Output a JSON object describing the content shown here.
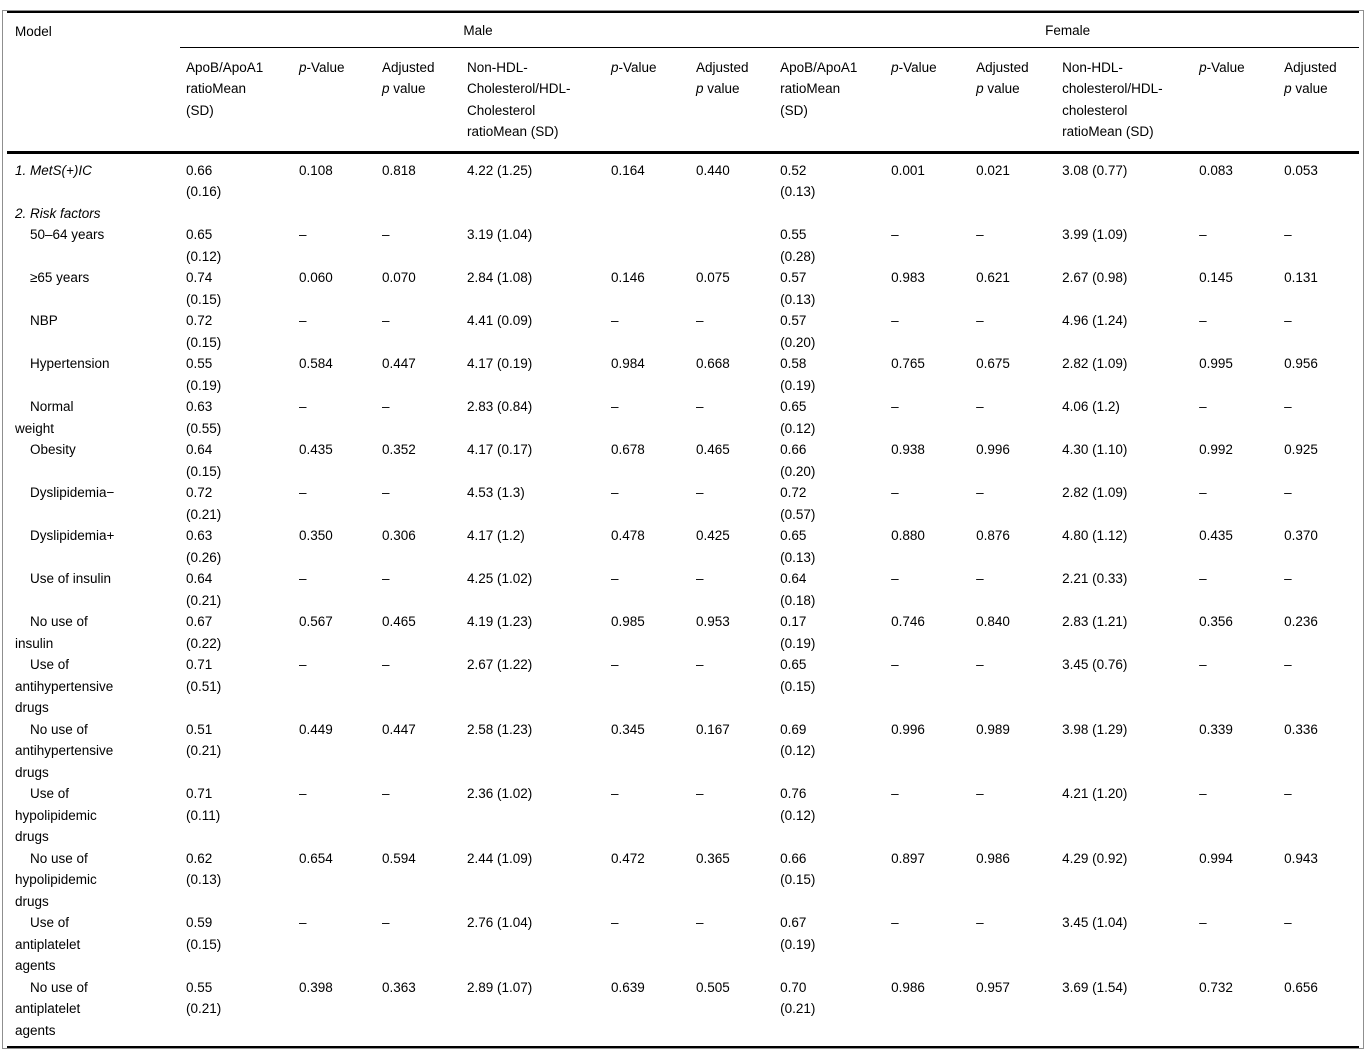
{
  "table": {
    "corner_label": "Model",
    "group_headers": [
      "Male",
      "Female"
    ],
    "sub_headers": [
      {
        "pre": "ApoB/ApoA1\nratioMean\n(SD)",
        "it": "",
        "post": ""
      },
      {
        "pre": "",
        "it": "p",
        "post": "-Value"
      },
      {
        "pre": "Adjusted\n",
        "it": "p",
        "post": " value"
      },
      {
        "pre": "Non-HDL-\nCholesterol/HDL-\nCholesterol\nratioMean (SD)",
        "it": "",
        "post": ""
      },
      {
        "pre": "",
        "it": "p",
        "post": "-Value"
      },
      {
        "pre": "Adjusted\n",
        "it": "p",
        "post": " value"
      },
      {
        "pre": "ApoB/ApoA1\nratioMean\n(SD)",
        "it": "",
        "post": ""
      },
      {
        "pre": "",
        "it": "p",
        "post": "-Value"
      },
      {
        "pre": "Adjusted\n",
        "it": "p",
        "post": " value"
      },
      {
        "pre": "Non-HDL-\ncholesterol/HDL-\ncholesterol\nratioMean (SD)",
        "it": "",
        "post": ""
      },
      {
        "pre": "",
        "it": "p",
        "post": "-Value"
      },
      {
        "pre": "Adjusted\n",
        "it": "p",
        "post": " value"
      }
    ],
    "rows": [
      {
        "label": "1. MetS(+)IC",
        "italic": true,
        "cells": [
          "0.66\n(0.16)",
          "0.108",
          "0.818",
          "4.22 (1.25)",
          "0.164",
          "0.440",
          "0.52\n(0.13)",
          "0.001",
          "0.021",
          "3.08 (0.77)",
          "0.083",
          "0.053"
        ]
      },
      {
        "label": "2. Risk factors",
        "italic": true,
        "cells": [
          "",
          "",
          "",
          "",
          "",
          "",
          "",
          "",
          "",
          "",
          "",
          ""
        ]
      },
      {
        "label": "50–64 years",
        "italic": false,
        "cells": [
          "0.65\n(0.12)",
          "–",
          "–",
          "3.19 (1.04)",
          "",
          "",
          "0.55\n(0.28)",
          "–",
          "–",
          "3.99 (1.09)",
          "–",
          "–"
        ]
      },
      {
        "label": "≥65 years",
        "italic": false,
        "cells": [
          "0.74\n(0.15)",
          "0.060",
          "0.070",
          "2.84 (1.08)",
          "0.146",
          "0.075",
          "0.57\n(0.13)",
          "0.983",
          "0.621",
          "2.67 (0.98)",
          "0.145",
          "0.131"
        ]
      },
      {
        "label": "NBP",
        "italic": false,
        "cells": [
          "0.72\n(0.15)",
          "–",
          "–",
          "4.41 (0.09)",
          "–",
          "–",
          "0.57\n(0.20)",
          "–",
          "–",
          "4.96 (1.24)",
          "–",
          "–"
        ]
      },
      {
        "label": "Hypertension",
        "italic": false,
        "cells": [
          "0.55\n(0.19)",
          "0.584",
          "0.447",
          "4.17 (0.19)",
          "0.984",
          "0.668",
          "0.58\n(0.19)",
          "0.765",
          "0.675",
          "2.82 (1.09)",
          "0.995",
          "0.956"
        ]
      },
      {
        "label": "Normal\nweight",
        "italic": false,
        "cells": [
          "0.63\n(0.55)",
          "–",
          "–",
          "2.83 (0.84)",
          "–",
          "–",
          "0.65\n(0.12)",
          "–",
          "–",
          "4.06 (1.2)",
          "–",
          "–"
        ]
      },
      {
        "label": "Obesity",
        "italic": false,
        "cells": [
          "0.64\n(0.15)",
          "0.435",
          "0.352",
          "4.17 (0.17)",
          "0.678",
          "0.465",
          "0.66\n(0.20)",
          "0.938",
          "0.996",
          "4.30 (1.10)",
          "0.992",
          "0.925"
        ]
      },
      {
        "label": "Dyslipidemia−",
        "italic": false,
        "cells": [
          "0.72\n(0.21)",
          "–",
          "–",
          "4.53 (1.3)",
          "–",
          "–",
          "0.72\n(0.57)",
          "–",
          "–",
          "2.82 (1.09)",
          "–",
          "–"
        ]
      },
      {
        "label": "Dyslipidemia+",
        "italic": false,
        "cells": [
          "0.63\n(0.26)",
          "0.350",
          "0.306",
          "4.17 (1.2)",
          "0.478",
          "0.425",
          "0.65\n(0.13)",
          "0.880",
          "0.876",
          "4.80 (1.12)",
          "0.435",
          "0.370"
        ]
      },
      {
        "label": "Use of insulin",
        "italic": false,
        "cells": [
          "0.64\n(0.21)",
          "–",
          "–",
          "4.25 (1.02)",
          "–",
          "–",
          "0.64\n(0.18)",
          "–",
          "–",
          "2.21 (0.33)",
          "–",
          "–"
        ]
      },
      {
        "label": "No use of\ninsulin",
        "italic": false,
        "cells": [
          "0.67\n(0.22)",
          "0.567",
          "0.465",
          "4.19 (1.23)",
          "0.985",
          "0.953",
          "0.17\n(0.19)",
          "0.746",
          "0.840",
          "2.83 (1.21)",
          "0.356",
          "0.236"
        ]
      },
      {
        "label": "Use of\nantihypertensive\ndrugs",
        "italic": false,
        "cells": [
          "0.71\n(0.51)",
          "–",
          "–",
          "2.67 (1.22)",
          "–",
          "–",
          "0.65\n(0.15)",
          "–",
          "–",
          "3.45 (0.76)",
          "–",
          "–"
        ]
      },
      {
        "label": "No use of\nantihypertensive\ndrugs",
        "italic": false,
        "cells": [
          "0.51\n(0.21)",
          "0.449",
          "0.447",
          "2.58 (1.23)",
          "0.345",
          "0.167",
          "0.69\n(0.12)",
          "0.996",
          "0.989",
          "3.98 (1.29)",
          "0.339",
          "0.336"
        ]
      },
      {
        "label": "Use of\nhypolipidemic\ndrugs",
        "italic": false,
        "cells": [
          "0.71\n(0.11)",
          "–",
          "–",
          "2.36 (1.02)",
          "–",
          "–",
          "0.76\n(0.12)",
          "–",
          "–",
          "4.21 (1.20)",
          "–",
          "–"
        ]
      },
      {
        "label": "No use of\nhypolipidemic\ndrugs",
        "italic": false,
        "cells": [
          "0.62\n(0.13)",
          "0.654",
          "0.594",
          "2.44 (1.09)",
          "0.472",
          "0.365",
          "0.66\n(0.15)",
          "0.897",
          "0.986",
          "4.29 (0.92)",
          "0.994",
          "0.943"
        ]
      },
      {
        "label": "Use of\nantiplatelet\nagents",
        "italic": false,
        "cells": [
          "0.59\n(0.15)",
          "–",
          "–",
          "2.76 (1.04)",
          "–",
          "–",
          "0.67\n(0.19)",
          "–",
          "–",
          "3.45 (1.04)",
          "–",
          "–"
        ]
      },
      {
        "label": "No use of\nantiplatelet\nagents",
        "italic": false,
        "cells": [
          "0.55\n(0.21)",
          "0.398",
          "0.363",
          "2.89 (1.07)",
          "0.639",
          "0.505",
          "0.70\n(0.21)",
          "0.986",
          "0.957",
          "3.69 (1.54)",
          "0.732",
          "0.656"
        ]
      }
    ]
  }
}
